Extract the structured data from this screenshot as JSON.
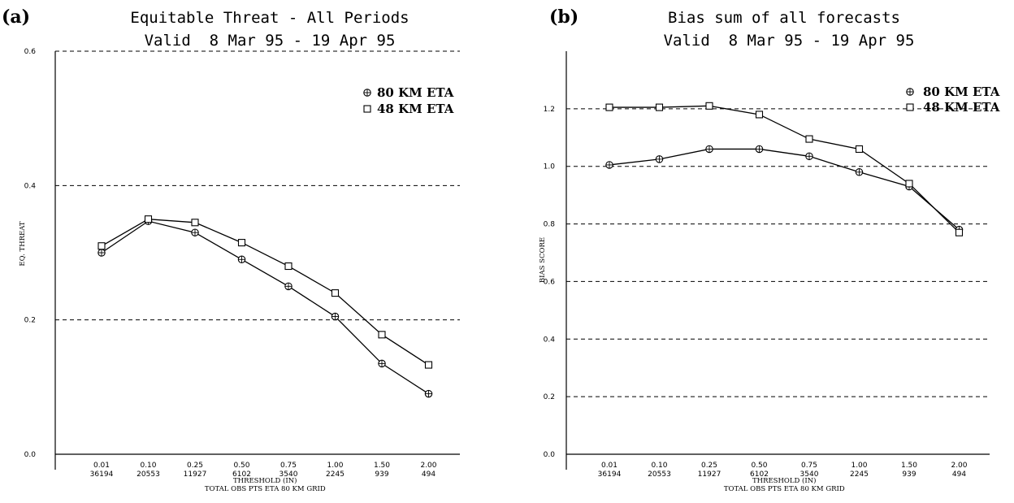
{
  "chart_data": [
    {
      "panel_label": "(a)",
      "type": "line",
      "title": "Equitable Threat - All Periods",
      "subtitle": "Valid  8 Mar 95 - 19 Apr 95",
      "ylabel": "EQ. THREAT",
      "xlabel": "THRESHOLD (IN)",
      "xlabel2": "TOTAL OBS PTS ETA 80 KM GRID",
      "ylim": [
        0,
        0.6
      ],
      "yticks": [
        "0.0",
        "0.2",
        "0.4",
        "0.6"
      ],
      "grid_y": [
        0.2,
        0.4,
        0.6
      ],
      "categories": [
        "0.01",
        "0.10",
        "0.25",
        "0.50",
        "0.75",
        "1.00",
        "1.50",
        "2.00"
      ],
      "categories_obs": [
        "36194",
        "20553",
        "11927",
        "6102",
        "3540",
        "2245",
        "939",
        "494"
      ],
      "legend_position": "top-right",
      "series": [
        {
          "name": "80 KM ETA",
          "marker": "circle-plus",
          "values": [
            0.3,
            0.347,
            0.33,
            0.29,
            0.25,
            0.205,
            0.135,
            0.09
          ]
        },
        {
          "name": "48 KM ETA",
          "marker": "square",
          "values": [
            0.31,
            0.35,
            0.345,
            0.315,
            0.28,
            0.24,
            0.178,
            0.133
          ]
        }
      ]
    },
    {
      "panel_label": "(b)",
      "type": "line",
      "title": "Bias sum of all forecasts",
      "subtitle": "Valid  8 Mar 95 - 19 Apr 95",
      "ylabel": "BIAS SCORE",
      "xlabel": "THRESHOLD (IN)",
      "xlabel2": "TOTAL OBS PTS ETA 80 KM GRID",
      "ylim": [
        0,
        1.4
      ],
      "yticks": [
        "0.0",
        "0.2",
        "0.4",
        "0.6",
        "0.8",
        "1.0",
        "1.2"
      ],
      "grid_y": [
        0.2,
        0.4,
        0.6,
        0.8,
        1.0,
        1.2
      ],
      "categories": [
        "0.01",
        "0.10",
        "0.25",
        "0.50",
        "0.75",
        "1.00",
        "1.50",
        "2.00"
      ],
      "categories_obs": [
        "36194",
        "20553",
        "11927",
        "6102",
        "3540",
        "2245",
        "939",
        "494"
      ],
      "legend_position": "top-right",
      "series": [
        {
          "name": "80 KM ETA",
          "marker": "circle-plus",
          "values": [
            1.005,
            1.025,
            1.06,
            1.06,
            1.035,
            0.98,
            0.93,
            0.78
          ]
        },
        {
          "name": "48 KM ETA",
          "marker": "square",
          "values": [
            1.205,
            1.205,
            1.21,
            1.18,
            1.095,
            1.06,
            0.94,
            0.77
          ]
        }
      ]
    }
  ]
}
